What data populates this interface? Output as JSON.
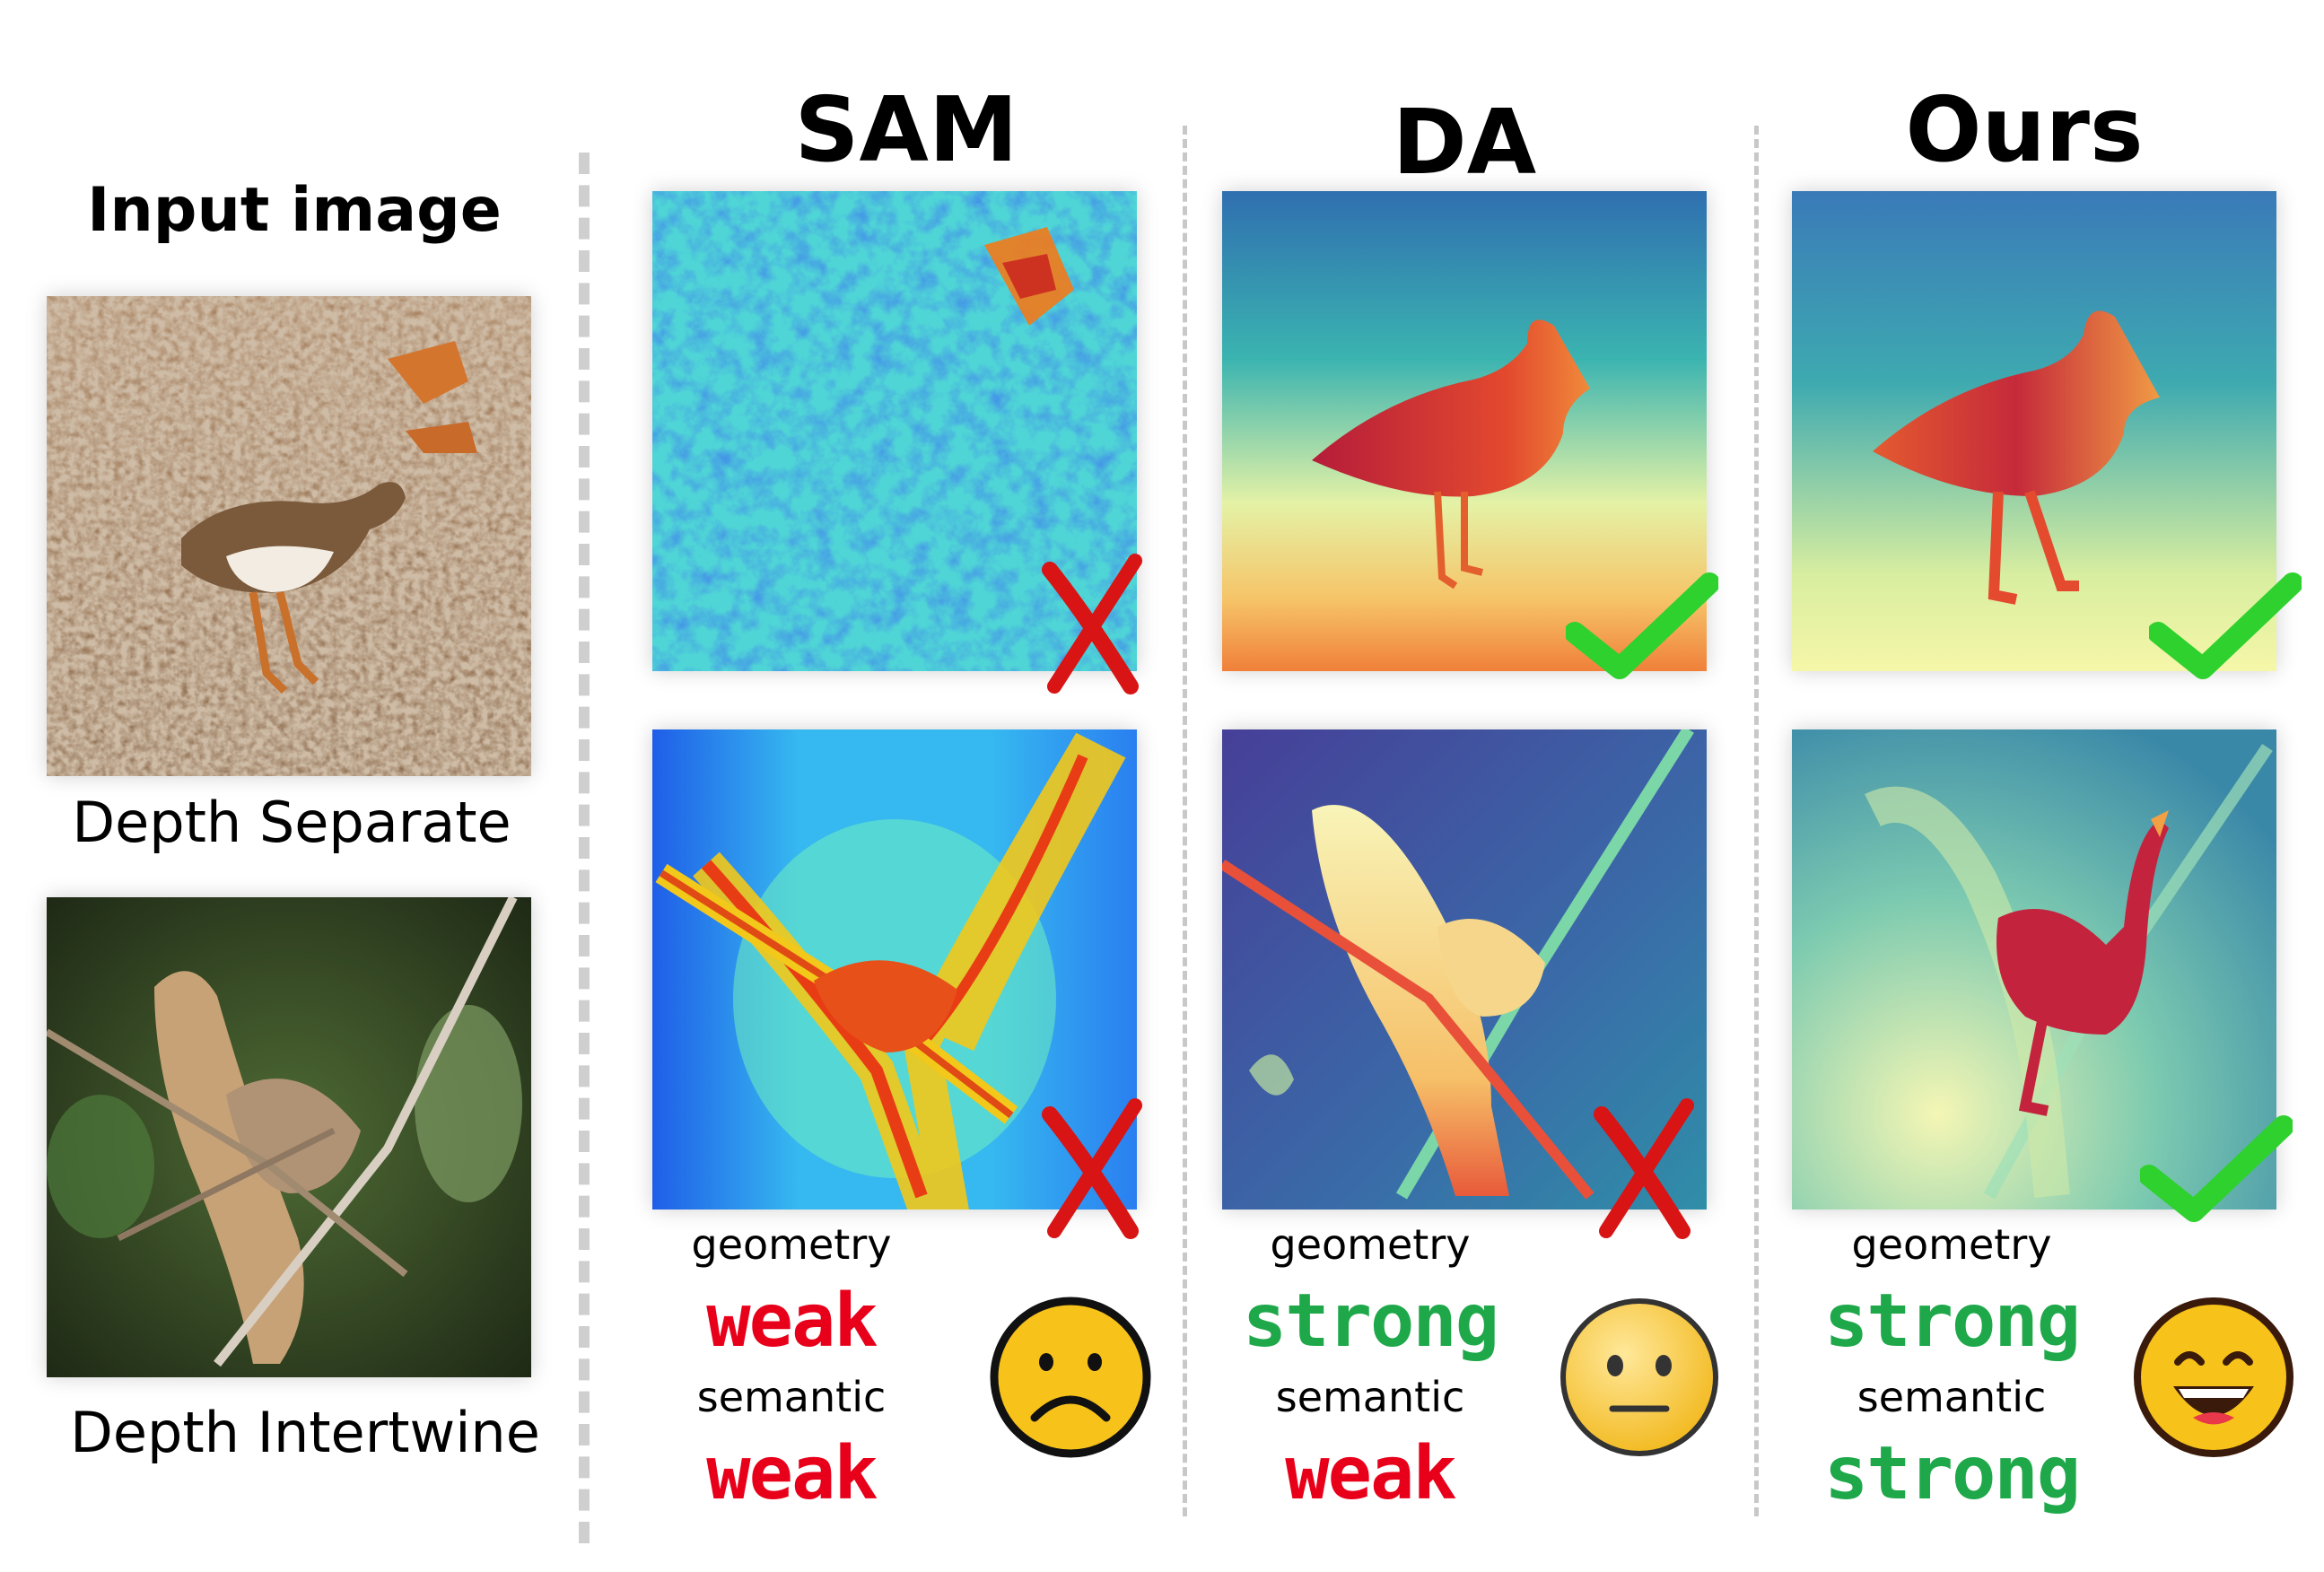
{
  "input_title": "Input image",
  "columns": {
    "sam": "SAM",
    "da": "DA",
    "ours": "Ours"
  },
  "row_captions": {
    "separate": "Depth Separate",
    "intertwine": "Depth Intertwine"
  },
  "scores": {
    "sam": {
      "geometry_label": "geometry",
      "geometry_value": "weak",
      "semantic_label": "semantic",
      "semantic_value": "weak"
    },
    "da": {
      "geometry_label": "geometry",
      "geometry_value": "strong",
      "semantic_label": "semantic",
      "semantic_value": "weak"
    },
    "ours": {
      "geometry_label": "geometry",
      "geometry_value": "strong",
      "semantic_label": "semantic",
      "semantic_value": "strong"
    }
  },
  "colors": {
    "weak": "#e8001a",
    "strong": "#1ea84a",
    "check": "#2ed12e",
    "cross": "#d81414",
    "emoji_fill": "#f7c21a"
  },
  "icons": {
    "sam_row1": "cross-icon",
    "sam_row2": "cross-icon",
    "da_row1": "check-icon",
    "da_row2": "cross-icon",
    "ours_row1": "check-icon",
    "ours_row2": "check-icon",
    "sam_emoji": "sad-face-icon",
    "da_emoji": "neutral-face-icon",
    "ours_emoji": "happy-face-icon"
  }
}
